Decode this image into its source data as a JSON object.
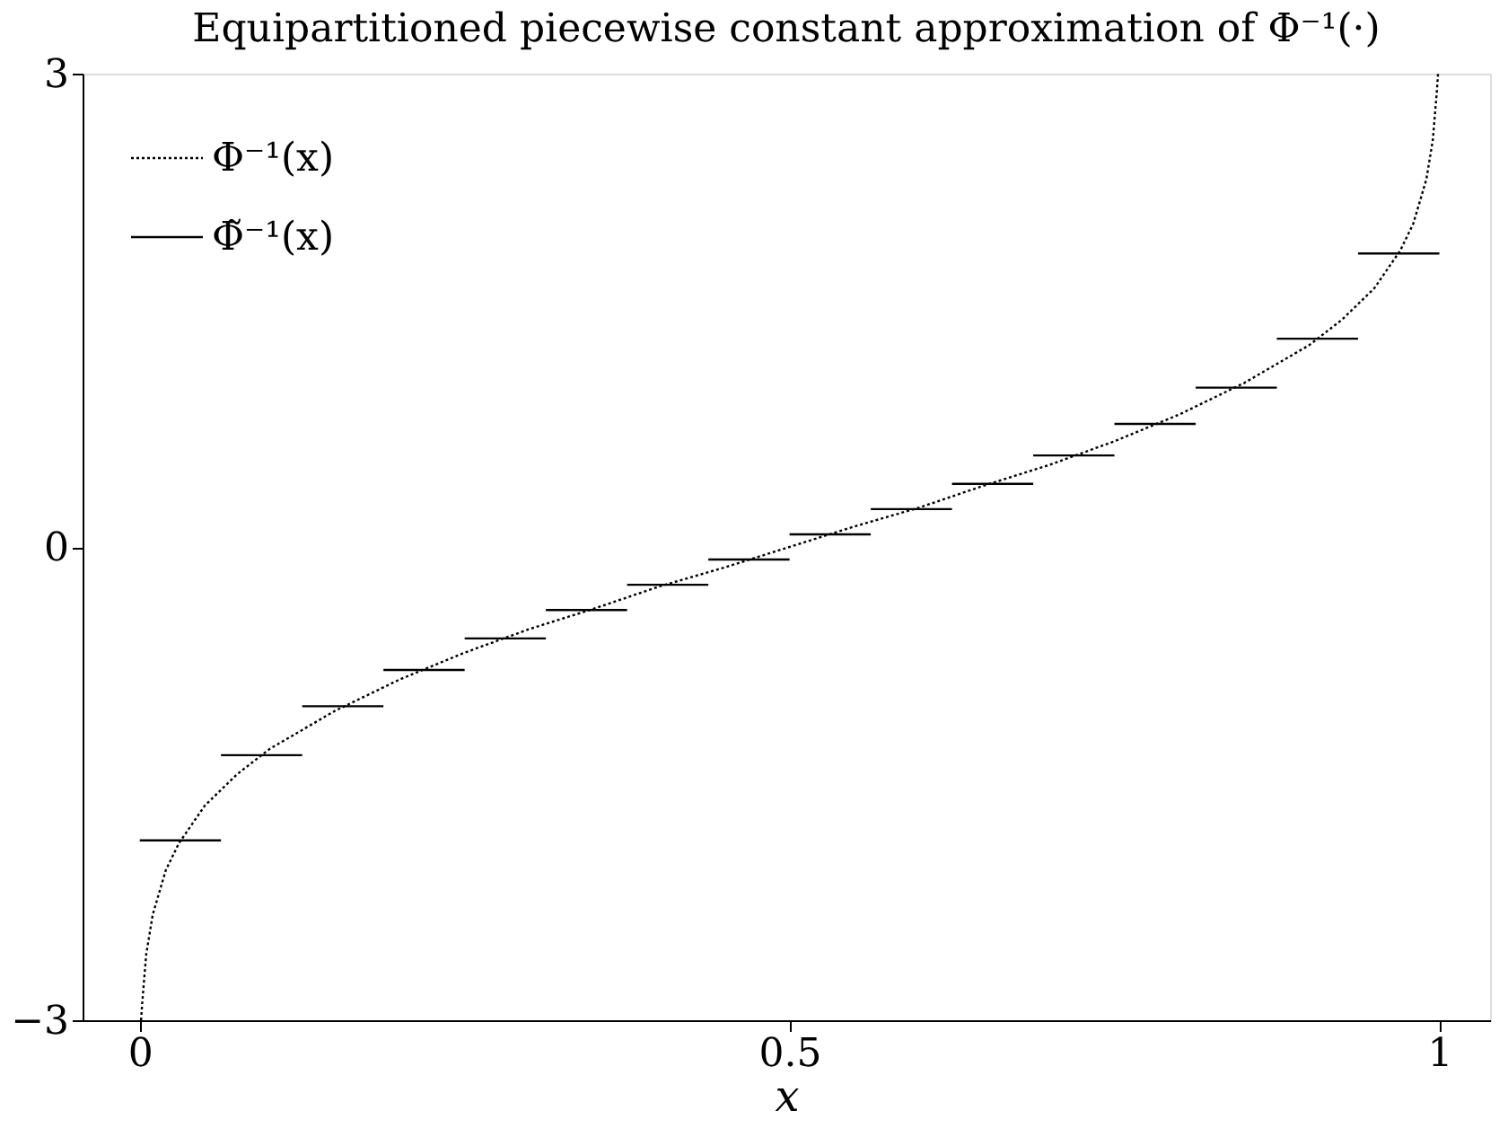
{
  "chart_data": {
    "type": "line",
    "title": "Equipartitioned piecewise constant approximation of Φ⁻¹(·)",
    "xlabel": "x",
    "xlim": [
      -0.044,
      1.039
    ],
    "ylim": [
      -3,
      3
    ],
    "xticks": [
      0,
      0.5,
      1
    ],
    "yticks": [
      -3,
      0,
      3
    ],
    "grid": false,
    "legend": "top left",
    "series": [
      {
        "name": "Φ⁻¹(x)",
        "color": "#000000",
        "line_style": "dotted",
        "x": [
          0.001,
          0.002,
          0.005,
          0.01,
          0.02,
          0.03,
          0.05,
          0.075,
          0.1,
          0.15,
          0.2,
          0.25,
          0.3,
          0.35,
          0.4,
          0.45,
          0.5,
          0.55,
          0.6,
          0.65,
          0.7,
          0.75,
          0.8,
          0.85,
          0.9,
          0.925,
          0.95,
          0.97,
          0.98,
          0.99,
          0.995,
          0.998,
          0.999
        ],
        "values": [
          -3.0,
          -2.88,
          -2.58,
          -2.33,
          -2.05,
          -1.88,
          -1.64,
          -1.44,
          -1.28,
          -1.04,
          -0.84,
          -0.67,
          -0.52,
          -0.39,
          -0.25,
          -0.13,
          0.0,
          0.13,
          0.25,
          0.39,
          0.52,
          0.67,
          0.84,
          1.04,
          1.28,
          1.44,
          1.64,
          1.88,
          2.05,
          2.33,
          2.58,
          2.88,
          3.0
        ]
      },
      {
        "name": "Φ̃⁻¹(x)",
        "color": "#000000",
        "line_style": "solid",
        "type": "step",
        "x": [
          0,
          0.0625,
          0.125,
          0.1875,
          0.25,
          0.3125,
          0.375,
          0.4375,
          0.5,
          0.5625,
          0.625,
          0.6875,
          0.75,
          0.8125,
          0.875,
          0.9375,
          1
        ],
        "values": [
          -1.86,
          -1.32,
          -1.01,
          -0.78,
          -0.58,
          -0.4,
          -0.24,
          -0.08,
          0.08,
          0.24,
          0.4,
          0.58,
          0.78,
          1.01,
          1.32,
          1.86,
          1.86
        ]
      }
    ]
  }
}
